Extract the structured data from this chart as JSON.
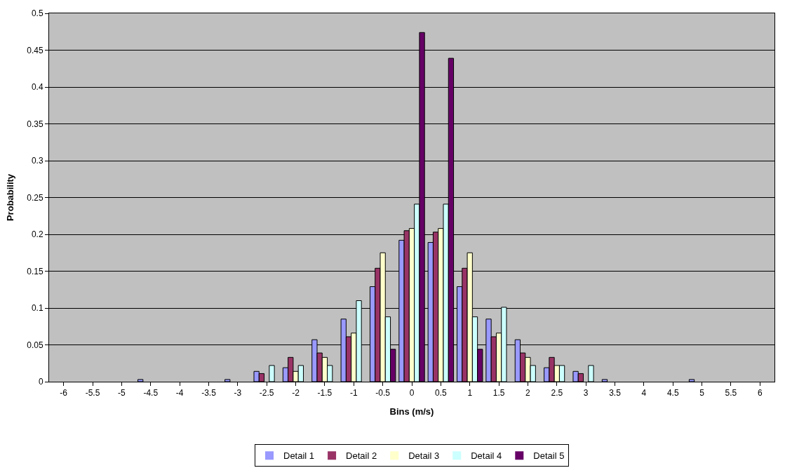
{
  "chart_data": {
    "type": "bar",
    "xlabel": "Bins (m/s)",
    "ylabel": "Probability",
    "categories": [
      "-6",
      "-5.5",
      "-5",
      "-4.5",
      "-4",
      "-3.5",
      "-3",
      "-2.5",
      "-2",
      "-1.5",
      "-1",
      "-0.5",
      "0",
      "0.5",
      "1",
      "1.5",
      "2",
      "2.5",
      "3",
      "3.5",
      "4",
      "4.5",
      "5",
      "5.5",
      "6"
    ],
    "series": [
      {
        "name": "Detail 1",
        "color": "#9999ff",
        "values": [
          0,
          0,
          0,
          0.003,
          0,
          0,
          0.003,
          0.014,
          0.019,
          0.057,
          0.085,
          0.129,
          0.192,
          0.189,
          0.129,
          0.085,
          0.057,
          0.019,
          0.014,
          0.003,
          0,
          0,
          0.003,
          0,
          0
        ]
      },
      {
        "name": "Detail 2",
        "color": "#993366",
        "values": [
          0,
          0,
          0,
          0,
          0,
          0,
          0,
          0.011,
          0.033,
          0.039,
          0.061,
          0.154,
          0.205,
          0.203,
          0.154,
          0.061,
          0.039,
          0.033,
          0.011,
          0,
          0,
          0,
          0,
          0,
          0
        ]
      },
      {
        "name": "Detail 3",
        "color": "#ffffcc",
        "values": [
          0,
          0,
          0,
          0,
          0,
          0,
          0,
          0,
          0.014,
          0.033,
          0.066,
          0.175,
          0.208,
          0.208,
          0.175,
          0.066,
          0.033,
          0.022,
          0,
          0,
          0,
          0,
          0,
          0,
          0
        ]
      },
      {
        "name": "Detail 4",
        "color": "#ccffff",
        "values": [
          0,
          0,
          0,
          0,
          0,
          0,
          0,
          0.022,
          0.022,
          0.022,
          0.11,
          0.088,
          0.241,
          0.241,
          0.088,
          0.101,
          0.022,
          0.022,
          0.022,
          0,
          0,
          0,
          0,
          0,
          0
        ]
      },
      {
        "name": "Detail 5",
        "color": "#660066",
        "values": [
          0,
          0,
          0,
          0,
          0,
          0,
          0,
          0,
          0,
          0,
          0,
          0.044,
          0.474,
          0.439,
          0.044,
          0,
          0,
          0,
          0,
          0,
          0,
          0,
          0,
          0,
          0
        ]
      }
    ],
    "ylim": [
      0,
      0.5
    ],
    "yticks": [
      0,
      0.05,
      0.1,
      0.15,
      0.2,
      0.25,
      0.3,
      0.35,
      0.4,
      0.45,
      0.5
    ],
    "grid": "y",
    "legend": "bottom"
  }
}
